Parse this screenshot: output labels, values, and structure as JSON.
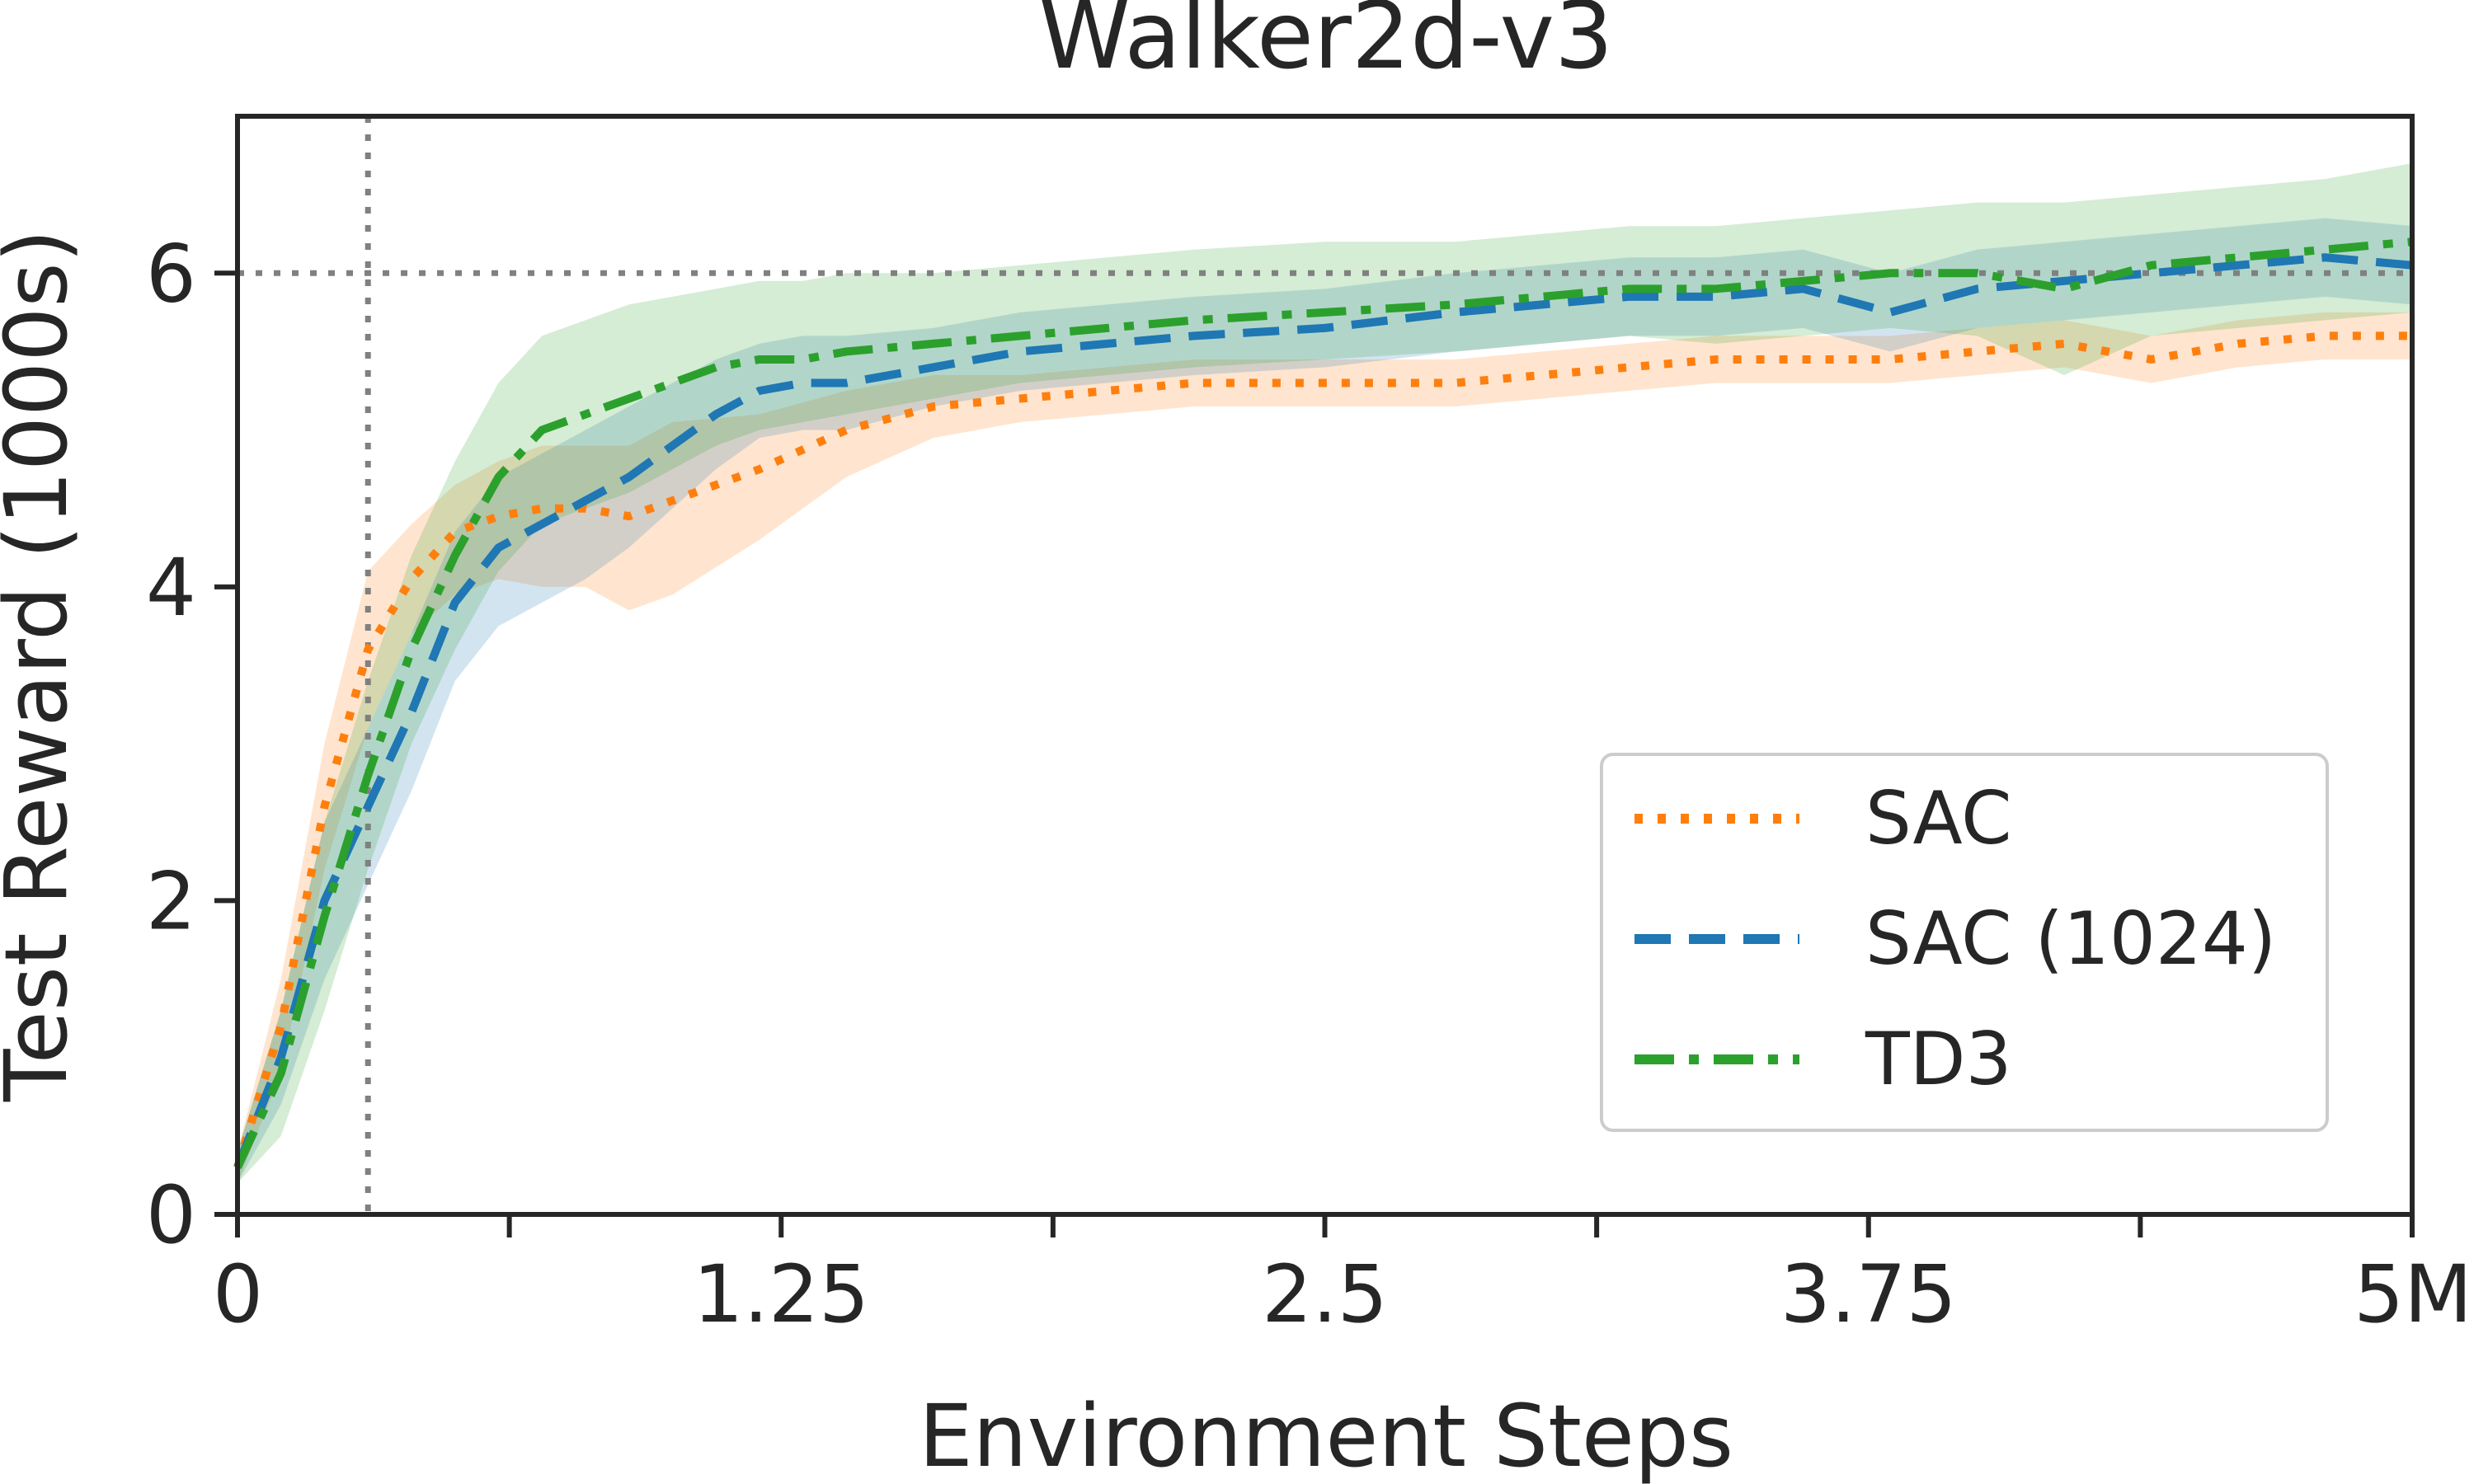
{
  "chart_data": {
    "type": "line",
    "title": "Walker2d-v3",
    "xlabel": "Environment Steps",
    "ylabel": "Test Reward (1000s)",
    "xlim": [
      0,
      5
    ],
    "ylim": [
      0,
      7
    ],
    "x_unit": "M",
    "x_ticks": [
      0,
      1.25,
      2.5,
      3.75,
      5
    ],
    "x_tick_labels": [
      "0",
      "1.25",
      "2.5",
      "3.75",
      "5M"
    ],
    "x_minor_ticks": [
      0.625,
      1.875,
      3.125,
      4.375
    ],
    "y_ticks": [
      0,
      2,
      4,
      6
    ],
    "y_tick_labels": [
      "0",
      "2",
      "4",
      "6"
    ],
    "grid": false,
    "legend_position": "lower-right",
    "reference_lines": [
      {
        "axis": "y",
        "value": 6,
        "color": "#808080",
        "style": "dotted"
      },
      {
        "axis": "x",
        "value": 0.3,
        "color": "#808080",
        "style": "dotted"
      }
    ],
    "series": [
      {
        "name": "SAC",
        "color": "#ff7f0e",
        "dash": "dotted",
        "x": [
          0,
          0.1,
          0.2,
          0.3,
          0.4,
          0.5,
          0.6,
          0.7,
          0.8,
          0.9,
          1.0,
          1.2,
          1.4,
          1.6,
          1.8,
          2.0,
          2.2,
          2.5,
          2.8,
          3.0,
          3.2,
          3.4,
          3.6,
          3.8,
          4.0,
          4.2,
          4.4,
          4.6,
          4.8,
          5.0
        ],
        "y": [
          0.3,
          1.2,
          2.6,
          3.6,
          4.05,
          4.35,
          4.45,
          4.5,
          4.5,
          4.45,
          4.55,
          4.75,
          5.0,
          5.15,
          5.2,
          5.25,
          5.3,
          5.3,
          5.3,
          5.35,
          5.4,
          5.45,
          5.45,
          5.45,
          5.5,
          5.55,
          5.45,
          5.55,
          5.6,
          5.6
        ],
        "lower": [
          0.2,
          0.9,
          2.2,
          3.1,
          3.7,
          3.95,
          4.05,
          4.0,
          4.0,
          3.85,
          3.95,
          4.3,
          4.7,
          4.95,
          5.05,
          5.1,
          5.15,
          5.15,
          5.15,
          5.2,
          5.25,
          5.3,
          5.3,
          5.3,
          5.35,
          5.4,
          5.3,
          5.4,
          5.45,
          5.45
        ],
        "upper": [
          0.4,
          1.5,
          3.0,
          4.1,
          4.4,
          4.65,
          4.8,
          4.9,
          4.9,
          4.9,
          5.05,
          5.1,
          5.25,
          5.35,
          5.35,
          5.4,
          5.45,
          5.45,
          5.45,
          5.5,
          5.55,
          5.6,
          5.6,
          5.6,
          5.65,
          5.7,
          5.6,
          5.7,
          5.75,
          5.75
        ]
      },
      {
        "name": "SAC (1024)",
        "color": "#1f77b4",
        "dash": "dashed",
        "x": [
          0,
          0.1,
          0.2,
          0.3,
          0.4,
          0.5,
          0.6,
          0.7,
          0.8,
          0.9,
          1.0,
          1.1,
          1.2,
          1.3,
          1.4,
          1.6,
          1.8,
          2.0,
          2.2,
          2.5,
          2.8,
          3.0,
          3.2,
          3.4,
          3.6,
          3.8,
          4.0,
          4.2,
          4.4,
          4.6,
          4.8,
          5.0
        ],
        "y": [
          0.3,
          1.0,
          2.0,
          2.6,
          3.2,
          3.9,
          4.25,
          4.4,
          4.55,
          4.7,
          4.9,
          5.1,
          5.25,
          5.3,
          5.3,
          5.4,
          5.5,
          5.55,
          5.6,
          5.65,
          5.75,
          5.8,
          5.85,
          5.85,
          5.9,
          5.75,
          5.9,
          5.95,
          6.0,
          6.05,
          6.1,
          6.05
        ],
        "lower": [
          0.2,
          0.7,
          1.5,
          2.1,
          2.7,
          3.4,
          3.75,
          3.9,
          4.05,
          4.25,
          4.5,
          4.75,
          4.95,
          5.0,
          5.0,
          5.15,
          5.25,
          5.3,
          5.35,
          5.4,
          5.5,
          5.55,
          5.6,
          5.6,
          5.65,
          5.5,
          5.65,
          5.7,
          5.75,
          5.8,
          5.85,
          5.8
        ],
        "upper": [
          0.4,
          1.3,
          2.5,
          3.1,
          3.7,
          4.35,
          4.7,
          4.85,
          5.0,
          5.15,
          5.3,
          5.45,
          5.55,
          5.6,
          5.6,
          5.65,
          5.75,
          5.8,
          5.85,
          5.9,
          6.0,
          6.05,
          6.1,
          6.1,
          6.15,
          6.0,
          6.15,
          6.2,
          6.25,
          6.3,
          6.35,
          6.3
        ]
      },
      {
        "name": "TD3",
        "color": "#2ca02c",
        "dash": "dashdot",
        "x": [
          0,
          0.1,
          0.2,
          0.3,
          0.4,
          0.5,
          0.6,
          0.7,
          0.8,
          0.9,
          1.0,
          1.1,
          1.2,
          1.3,
          1.4,
          1.6,
          1.8,
          2.0,
          2.2,
          2.5,
          2.8,
          3.0,
          3.2,
          3.4,
          3.6,
          3.8,
          4.0,
          4.2,
          4.4,
          4.6,
          4.8,
          5.0
        ],
        "y": [
          0.3,
          0.9,
          1.9,
          2.8,
          3.6,
          4.2,
          4.7,
          5.0,
          5.1,
          5.2,
          5.3,
          5.4,
          5.45,
          5.45,
          5.5,
          5.55,
          5.6,
          5.65,
          5.7,
          5.75,
          5.8,
          5.85,
          5.9,
          5.9,
          5.95,
          6.0,
          6.0,
          5.9,
          6.05,
          6.1,
          6.15,
          6.2
        ],
        "lower": [
          0.2,
          0.5,
          1.3,
          2.2,
          3.0,
          3.6,
          4.1,
          4.4,
          4.5,
          4.6,
          4.75,
          4.9,
          5.0,
          5.05,
          5.1,
          5.2,
          5.3,
          5.35,
          5.4,
          5.45,
          5.5,
          5.55,
          5.6,
          5.55,
          5.6,
          5.65,
          5.6,
          5.35,
          5.6,
          5.65,
          5.7,
          5.75
        ],
        "upper": [
          0.4,
          1.3,
          2.5,
          3.4,
          4.2,
          4.8,
          5.3,
          5.6,
          5.7,
          5.8,
          5.85,
          5.9,
          5.95,
          5.95,
          6.0,
          6.0,
          6.05,
          6.1,
          6.15,
          6.2,
          6.2,
          6.25,
          6.3,
          6.3,
          6.35,
          6.4,
          6.45,
          6.45,
          6.5,
          6.55,
          6.6,
          6.7
        ]
      }
    ]
  }
}
